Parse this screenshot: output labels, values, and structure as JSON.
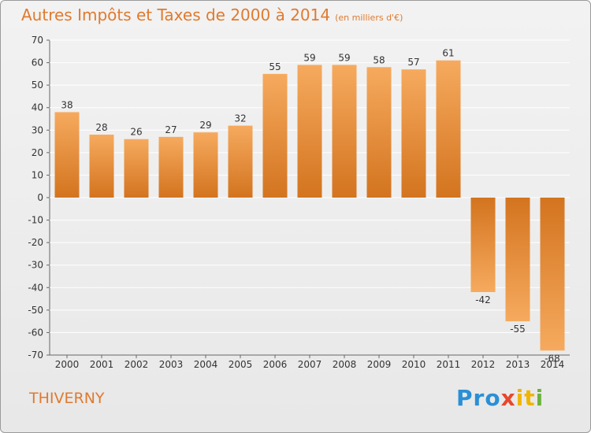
{
  "title": "Autres Impôts et Taxes de 2000 à 2014",
  "subtitle": "(en milliers d'€)",
  "commune": "THIVERNY",
  "logo": [
    "Pro",
    "x",
    "it",
    "i"
  ],
  "colors": {
    "bar_light": "#f6aa5e",
    "bar_dark": "#d3741f",
    "title": "#e07a2e",
    "grid": "#ffffff"
  },
  "chart_data": {
    "type": "bar",
    "categories": [
      "2000",
      "2001",
      "2002",
      "2003",
      "2004",
      "2005",
      "2006",
      "2007",
      "2008",
      "2009",
      "2010",
      "2011",
      "2012",
      "2013",
      "2014"
    ],
    "values": [
      38,
      28,
      26,
      27,
      29,
      32,
      55,
      59,
      59,
      58,
      57,
      61,
      -42,
      -55,
      -68
    ],
    "value_labels": [
      "38",
      "28",
      "26",
      "27",
      "29",
      "32",
      "55",
      "59",
      "59",
      "58",
      "57",
      "61",
      "-42",
      "-55",
      "-68"
    ],
    "ylim": [
      -70,
      70
    ],
    "yticks": [
      70,
      60,
      50,
      40,
      30,
      20,
      10,
      0,
      -10,
      -20,
      -30,
      -40,
      -50,
      -60,
      -70
    ],
    "grid": true
  }
}
